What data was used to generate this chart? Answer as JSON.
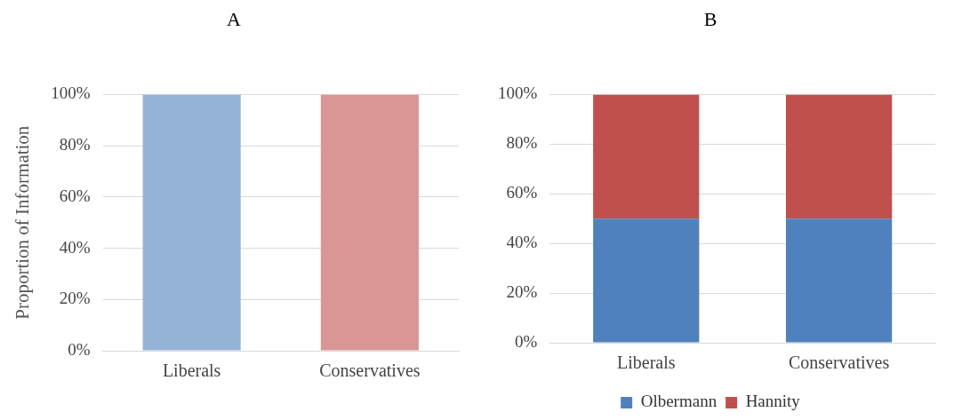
{
  "chart_data": [
    {
      "type": "bar",
      "title": "A",
      "ylabel": "Proportion of Information",
      "categories": [
        "Liberals",
        "Conservatives"
      ],
      "values": [
        100,
        100
      ],
      "colors": [
        "#95b3d7",
        "#d99694"
      ],
      "ylim": [
        0,
        100
      ],
      "yticks": [
        {
          "value": 0,
          "label": "0%"
        },
        {
          "value": 20,
          "label": "20%"
        },
        {
          "value": 40,
          "label": "40%"
        },
        {
          "value": 60,
          "label": "60%"
        },
        {
          "value": 80,
          "label": "80%"
        },
        {
          "value": 100,
          "label": "100%"
        }
      ],
      "grid": "y"
    },
    {
      "type": "bar",
      "title": "B",
      "categories": [
        "Liberals",
        "Conservatives"
      ],
      "stacked": true,
      "series": [
        {
          "name": "Olbermann",
          "color": "#4f81bd",
          "values": [
            50,
            50
          ]
        },
        {
          "name": "Hannity",
          "color": "#c0504d",
          "values": [
            50,
            50
          ]
        }
      ],
      "ylim": [
        0,
        100
      ],
      "yticks": [
        {
          "value": 0,
          "label": "0%"
        },
        {
          "value": 20,
          "label": "20%"
        },
        {
          "value": 40,
          "label": "40%"
        },
        {
          "value": 60,
          "label": "60%"
        },
        {
          "value": 80,
          "label": "80%"
        },
        {
          "value": 100,
          "label": "100%"
        }
      ],
      "grid": "y",
      "legend": "bottom"
    }
  ]
}
